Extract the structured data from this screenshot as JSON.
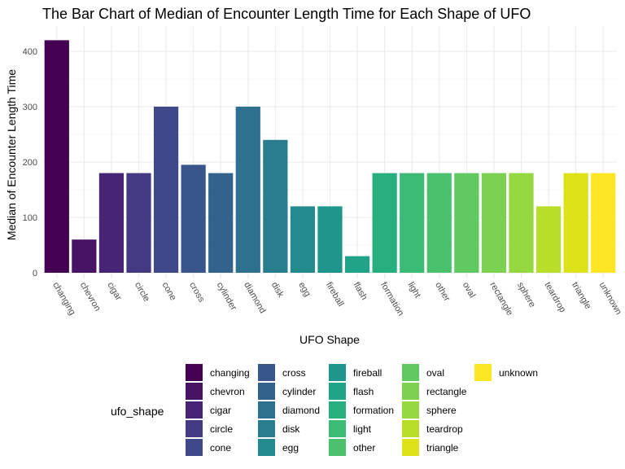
{
  "chart_data": {
    "type": "bar",
    "title": "The Bar Chart of Median of Encounter Length Time for Each Shape of UFO",
    "xlabel": "UFO Shape",
    "ylabel": "Median of Encounter Length Time",
    "ylim": [
      0,
      440
    ],
    "yticks": [
      0,
      100,
      200,
      300,
      400
    ],
    "grid": true,
    "legend_title": "ufo_shape",
    "legend_position": "bottom",
    "categories": [
      "changing",
      "chevron",
      "cigar",
      "circle",
      "cone",
      "cross",
      "cylinder",
      "diamond",
      "disk",
      "egg",
      "fireball",
      "flash",
      "formation",
      "light",
      "other",
      "oval",
      "rectangle",
      "sphere",
      "teardrop",
      "triangle",
      "unknown"
    ],
    "values": [
      420,
      60,
      180,
      180,
      300,
      195,
      180,
      300,
      240,
      120,
      120,
      30,
      180,
      180,
      180,
      180,
      180,
      180,
      120,
      180,
      180
    ],
    "colors": [
      "#440154",
      "#471365",
      "#482475",
      "#443983",
      "#3f4889",
      "#39568c",
      "#33638d",
      "#2d718e",
      "#287d8e",
      "#238a8d",
      "#1f968b",
      "#20a386",
      "#29af7f",
      "#3bbb75",
      "#4ac16d",
      "#60ca60",
      "#7cd250",
      "#95d840",
      "#b8de29",
      "#dde318",
      "#fde725"
    ]
  }
}
